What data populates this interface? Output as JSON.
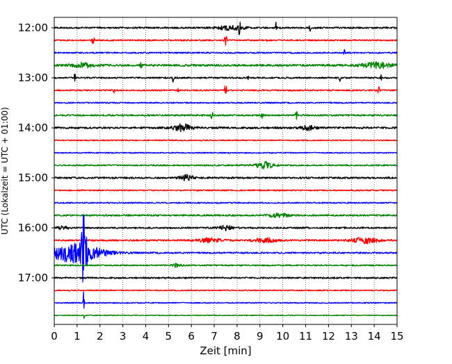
{
  "chart_data": {
    "type": "line",
    "title": "",
    "xlabel": "Zeit  [min]",
    "ylabel": "UTC (Lokalzeit = UTC + 01:00)",
    "xlim": [
      0,
      15
    ],
    "x_ticks": [
      0,
      1,
      2,
      3,
      4,
      5,
      6,
      7,
      8,
      9,
      10,
      11,
      12,
      13,
      14,
      15
    ],
    "x_tick_labels": [
      "0",
      "1",
      "2",
      "3",
      "4",
      "5",
      "6",
      "7",
      "8",
      "9",
      "10",
      "11",
      "12",
      "13",
      "14",
      "15"
    ],
    "y_tick_labels": [
      "12:00",
      "13:00",
      "14:00",
      "15:00",
      "16:00",
      "17:00"
    ],
    "trace_interval_minutes": 15,
    "start_time_utc": "12:00",
    "trace_count": 24,
    "color_cycle": [
      "#000000",
      "#ff0000",
      "#0000ff",
      "#008000"
    ],
    "grid": "vertical dotted at each minute",
    "series": [
      {
        "trace_start": "12:00",
        "noise": 1.2,
        "events": [
          {
            "t": 8.1,
            "amp": 8,
            "dur": 0.05
          },
          {
            "t": 9.7,
            "amp": 7,
            "dur": 0.03
          },
          {
            "t": 11.2,
            "amp": 7,
            "dur": 0.03
          },
          {
            "t": 7.7,
            "amp": 3,
            "dur": 0.6
          }
        ]
      },
      {
        "trace_start": "12:15",
        "noise": 1.0,
        "events": [
          {
            "t": 1.7,
            "amp": 12,
            "dur": 0.05
          },
          {
            "t": 7.5,
            "amp": 8,
            "dur": 0.05
          },
          {
            "t": 9.3,
            "amp": 4,
            "dur": 0.03
          }
        ]
      },
      {
        "trace_start": "12:30",
        "noise": 1.0,
        "events": [
          {
            "t": 12.7,
            "amp": 4,
            "dur": 0.03
          }
        ]
      },
      {
        "trace_start": "12:45",
        "noise": 1.5,
        "events": [
          {
            "t": 1.3,
            "amp": 3,
            "dur": 0.5
          },
          {
            "t": 3.8,
            "amp": 5,
            "dur": 0.04
          },
          {
            "t": 14.1,
            "amp": 4,
            "dur": 0.6
          }
        ]
      },
      {
        "trace_start": "13:00",
        "noise": 1.1,
        "events": [
          {
            "t": 0.9,
            "amp": 6,
            "dur": 0.03
          },
          {
            "t": 5.2,
            "amp": 6,
            "dur": 0.03
          },
          {
            "t": 8.5,
            "amp": 4,
            "dur": 0.03
          },
          {
            "t": 12.5,
            "amp": 5,
            "dur": 0.03
          },
          {
            "t": 14.3,
            "amp": 4,
            "dur": 0.03
          }
        ]
      },
      {
        "trace_start": "13:15",
        "noise": 1.0,
        "events": [
          {
            "t": 2.6,
            "amp": 4,
            "dur": 0.03
          },
          {
            "t": 5.4,
            "amp": 5,
            "dur": 0.03
          },
          {
            "t": 7.5,
            "amp": 8,
            "dur": 0.05
          },
          {
            "t": 14.2,
            "amp": 6,
            "dur": 0.04
          }
        ]
      },
      {
        "trace_start": "13:30",
        "noise": 0.9,
        "events": []
      },
      {
        "trace_start": "13:45",
        "noise": 1.2,
        "events": [
          {
            "t": 6.9,
            "amp": 5,
            "dur": 0.05
          },
          {
            "t": 9.1,
            "amp": 5,
            "dur": 0.05
          },
          {
            "t": 10.6,
            "amp": 5,
            "dur": 0.05
          }
        ]
      },
      {
        "trace_start": "14:00",
        "noise": 1.4,
        "events": [
          {
            "t": 5.6,
            "amp": 5,
            "dur": 0.4
          },
          {
            "t": 11.1,
            "amp": 3,
            "dur": 0.3
          }
        ]
      },
      {
        "trace_start": "14:15",
        "noise": 0.8,
        "events": []
      },
      {
        "trace_start": "14:30",
        "noise": 0.8,
        "events": []
      },
      {
        "trace_start": "14:45",
        "noise": 1.0,
        "events": [
          {
            "t": 9.2,
            "amp": 5,
            "dur": 0.4
          }
        ]
      },
      {
        "trace_start": "15:00",
        "noise": 1.3,
        "events": [
          {
            "t": 5.8,
            "amp": 4,
            "dur": 0.3
          }
        ]
      },
      {
        "trace_start": "15:15",
        "noise": 0.9,
        "events": []
      },
      {
        "trace_start": "15:30",
        "noise": 0.9,
        "events": []
      },
      {
        "trace_start": "15:45",
        "noise": 1.2,
        "events": [
          {
            "t": 9.8,
            "amp": 3,
            "dur": 0.4
          }
        ]
      },
      {
        "trace_start": "16:00",
        "noise": 1.2,
        "events": [
          {
            "t": 0.4,
            "amp": 3,
            "dur": 0.2
          },
          {
            "t": 7.5,
            "amp": 3,
            "dur": 0.3
          }
        ]
      },
      {
        "trace_start": "16:15",
        "noise": 1.2,
        "events": [
          {
            "t": 6.8,
            "amp": 3,
            "dur": 0.5
          },
          {
            "t": 9.2,
            "amp": 3,
            "dur": 0.5
          },
          {
            "t": 13.6,
            "amp": 4,
            "dur": 0.6
          }
        ]
      },
      {
        "trace_start": "16:30",
        "noise": 1.1,
        "events": [
          {
            "t": 1.3,
            "amp": 45,
            "dur": 0.1
          },
          {
            "t": 0.9,
            "amp": 14,
            "dur": 1.2
          }
        ]
      },
      {
        "trace_start": "16:45",
        "noise": 1.0,
        "events": [
          {
            "t": 5.4,
            "amp": 3,
            "dur": 0.2
          }
        ]
      },
      {
        "trace_start": "17:00",
        "noise": 1.1,
        "events": []
      },
      {
        "trace_start": "17:15",
        "noise": 0.8,
        "events": []
      },
      {
        "trace_start": "17:30",
        "noise": 0.8,
        "events": [
          {
            "t": 1.3,
            "amp": 25,
            "dur": 0.03
          }
        ]
      },
      {
        "trace_start": "17:45",
        "noise": 0.6,
        "events": [
          {
            "t": 1.3,
            "amp": 5,
            "dur": 0.02
          }
        ]
      }
    ]
  }
}
